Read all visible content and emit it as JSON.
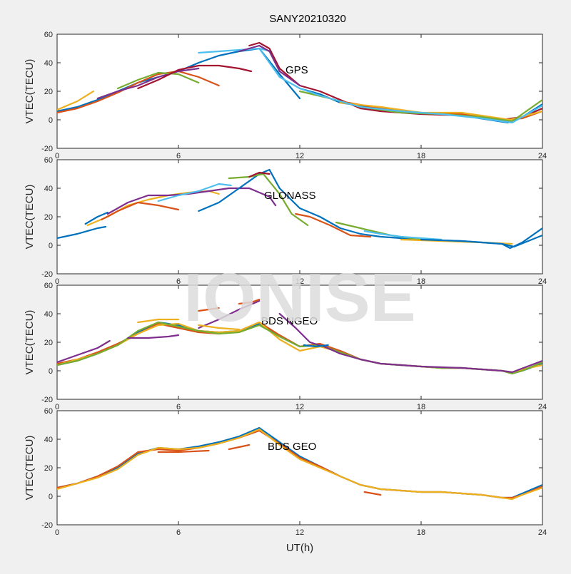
{
  "title": "SANY20210320",
  "watermark": "IONISE",
  "colors": [
    "#0072bd",
    "#d95319",
    "#edb120",
    "#7e2f8e",
    "#77ac30",
    "#4dbeee",
    "#a2142f"
  ],
  "chart_data": [
    {
      "type": "line",
      "annotation": "GPS",
      "ylabel": "VTEC(TECU)",
      "xlabel": "",
      "xlim": [
        0,
        24
      ],
      "ylim": [
        -20,
        60
      ],
      "xticks": [
        0,
        6,
        12,
        18,
        24
      ],
      "yticks": [
        -20,
        0,
        20,
        40,
        60
      ],
      "series": [
        {
          "color": 0,
          "x": [
            0,
            1,
            2,
            3,
            4,
            5,
            6,
            7,
            8,
            9,
            10,
            11,
            12
          ],
          "y": [
            6,
            9,
            14,
            20,
            26,
            30,
            34,
            40,
            45,
            48,
            50,
            32,
            15
          ]
        },
        {
          "color": 1,
          "x": [
            0,
            1,
            2,
            3,
            4,
            5,
            6,
            7,
            8
          ],
          "y": [
            5,
            8,
            13,
            19,
            26,
            32,
            34,
            30,
            24
          ]
        },
        {
          "color": 2,
          "x": [
            0,
            1,
            1.8
          ],
          "y": [
            7,
            13,
            20
          ]
        },
        {
          "color": 3,
          "x": [
            2,
            3,
            4,
            5,
            6,
            7
          ],
          "y": [
            15,
            20,
            24,
            30,
            34,
            36
          ]
        },
        {
          "color": 4,
          "x": [
            3,
            4,
            5,
            6,
            7
          ],
          "y": [
            22,
            28,
            33,
            32,
            26
          ]
        },
        {
          "color": 5,
          "x": [
            7,
            8,
            9,
            10,
            10.6
          ],
          "y": [
            47,
            48,
            49,
            50,
            48
          ]
        },
        {
          "color": 6,
          "x": [
            4,
            5,
            6,
            7,
            8,
            9,
            9.6
          ],
          "y": [
            22,
            28,
            35,
            38,
            38,
            36,
            34
          ]
        },
        {
          "color": 6,
          "x": [
            9.5,
            10,
            10.5,
            11,
            12,
            13,
            14,
            15,
            16,
            18,
            20,
            22,
            23,
            24
          ],
          "y": [
            52,
            54,
            50,
            36,
            24,
            20,
            14,
            8,
            6,
            4,
            3,
            0,
            2,
            8
          ]
        },
        {
          "color": 0,
          "x": [
            12,
            13,
            14,
            16,
            18,
            20,
            22.3,
            23,
            24
          ],
          "y": [
            22,
            18,
            12,
            8,
            5,
            3,
            -2,
            2,
            11
          ]
        },
        {
          "color": 1,
          "x": [
            12.5,
            14,
            16,
            18,
            20,
            22,
            23,
            24
          ],
          "y": [
            19,
            13,
            8,
            5,
            4,
            0,
            1,
            6
          ]
        },
        {
          "color": 2,
          "x": [
            14,
            16,
            18,
            20,
            22.4,
            24
          ],
          "y": [
            12,
            9,
            5,
            5,
            0,
            6
          ]
        },
        {
          "color": 4,
          "x": [
            12,
            13.5,
            15,
            17,
            19,
            21,
            22.5,
            24
          ],
          "y": [
            20,
            15,
            9,
            5,
            4,
            2,
            -1,
            14
          ]
        },
        {
          "color": 5,
          "x": [
            10,
            11,
            12,
            13,
            15,
            17,
            19,
            21,
            22.5,
            24
          ],
          "y": [
            50,
            30,
            22,
            17,
            9,
            6,
            4,
            1,
            -2,
            10
          ]
        },
        {
          "color": 3,
          "x": [
            9,
            10,
            10.5,
            11,
            12
          ],
          "y": [
            48,
            52,
            48,
            34,
            24
          ]
        }
      ]
    },
    {
      "type": "line",
      "annotation": "GLONASS",
      "ylabel": "VTEC(TECU)",
      "xlabel": "",
      "xlim": [
        0,
        24
      ],
      "ylim": [
        -20,
        60
      ],
      "xticks": [
        0,
        6,
        12,
        18,
        24
      ],
      "yticks": [
        -20,
        0,
        20,
        40,
        60
      ],
      "series": [
        {
          "color": 0,
          "x": [
            0,
            1,
            2,
            2.4
          ],
          "y": [
            5,
            8,
            12,
            13
          ]
        },
        {
          "color": 0,
          "x": [
            1.4,
            2,
            2.5
          ],
          "y": [
            15,
            20,
            23
          ]
        },
        {
          "color": 2,
          "x": [
            1.5,
            2.5,
            3.5,
            4.5,
            5.5,
            6.5,
            7.5,
            8
          ],
          "y": [
            14,
            20,
            28,
            32,
            35,
            37,
            38,
            36
          ]
        },
        {
          "color": 3,
          "x": [
            2.5,
            3.5,
            4.5,
            5.5,
            6.5,
            7.5,
            8.5,
            9.5,
            10.5,
            10.8
          ],
          "y": [
            22,
            30,
            35,
            35,
            36,
            38,
            40,
            40,
            34,
            28
          ]
        },
        {
          "color": 1,
          "x": [
            2.2,
            3,
            4,
            5,
            6
          ],
          "y": [
            18,
            24,
            30,
            28,
            25
          ]
        },
        {
          "color": 5,
          "x": [
            5,
            6,
            7,
            8,
            8.6
          ],
          "y": [
            31,
            35,
            38,
            43,
            42
          ]
        },
        {
          "color": 0,
          "x": [
            7,
            8,
            9,
            10,
            10.5,
            11,
            12,
            13,
            14,
            15,
            16,
            18,
            20,
            22,
            22.4,
            23,
            24
          ],
          "y": [
            24,
            30,
            40,
            50,
            53,
            40,
            26,
            20,
            12,
            8,
            6,
            4,
            3,
            1,
            -2,
            2,
            12
          ]
        },
        {
          "color": 4,
          "x": [
            8.5,
            9.5,
            10.2,
            11,
            11.6,
            12.4
          ],
          "y": [
            47,
            48,
            50,
            36,
            22,
            14
          ]
        },
        {
          "color": 6,
          "x": [
            9.5,
            10,
            10.5
          ],
          "y": [
            48,
            51,
            50
          ]
        },
        {
          "color": 1,
          "x": [
            11.8,
            12.5,
            13.5,
            14.5,
            15.5
          ],
          "y": [
            22,
            20,
            14,
            7,
            6
          ]
        },
        {
          "color": 4,
          "x": [
            13.8,
            15,
            16.5,
            18,
            19.5
          ],
          "y": [
            16,
            12,
            7,
            4,
            3
          ]
        },
        {
          "color": 5,
          "x": [
            15.2,
            16,
            17,
            18,
            19
          ],
          "y": [
            10,
            8,
            6,
            5,
            4
          ]
        },
        {
          "color": 2,
          "x": [
            17,
            19,
            21,
            22.5
          ],
          "y": [
            4,
            3,
            2,
            1
          ]
        },
        {
          "color": 0,
          "x": [
            18,
            20,
            22,
            22.6,
            24
          ],
          "y": [
            4,
            3,
            1,
            -1,
            7
          ]
        }
      ]
    },
    {
      "type": "line",
      "annotation": "BDS NGEO",
      "ylabel": "VTEC(TECU)",
      "xlabel": "",
      "xlim": [
        0,
        24
      ],
      "ylim": [
        -20,
        60
      ],
      "xticks": [
        0,
        6,
        12,
        18,
        24
      ],
      "yticks": [
        -20,
        0,
        20,
        40,
        60
      ],
      "series": [
        {
          "color": 0,
          "x": [
            0,
            1,
            2,
            3,
            4,
            5,
            6,
            7,
            8,
            9,
            10,
            11,
            12,
            13,
            14,
            15,
            16,
            17,
            18,
            19,
            20,
            21,
            22,
            22.5,
            23,
            24
          ],
          "y": [
            4,
            7,
            12,
            18,
            27,
            34,
            32,
            28,
            27,
            28,
            33,
            24,
            17,
            18,
            14,
            8,
            5,
            4,
            3,
            2,
            2,
            1,
            0,
            -2,
            0,
            5
          ]
        },
        {
          "color": 1,
          "x": [
            0,
            1,
            2,
            3,
            4,
            5,
            6,
            7,
            8,
            9,
            10,
            11,
            12,
            13,
            14,
            15,
            16,
            17,
            18,
            19,
            20,
            21,
            22,
            22.5,
            23,
            24
          ],
          "y": [
            5,
            8,
            13,
            19,
            26,
            33,
            30,
            27,
            26,
            28,
            34,
            25,
            17,
            19,
            14,
            8,
            5,
            4,
            3,
            2,
            2,
            1,
            0,
            -1,
            0,
            6
          ]
        },
        {
          "color": 2,
          "x": [
            0,
            1,
            2,
            3,
            4,
            5,
            6,
            7,
            8,
            9,
            10,
            11,
            12,
            13,
            14,
            15,
            16,
            17,
            18,
            19,
            20,
            21,
            22,
            22.5,
            23,
            24
          ],
          "y": [
            4,
            8,
            12,
            18,
            26,
            32,
            33,
            28,
            27,
            28,
            34,
            22,
            14,
            17,
            13,
            8,
            5,
            4,
            3,
            2,
            2,
            1,
            0,
            -2,
            1,
            4
          ]
        },
        {
          "color": 4,
          "x": [
            0,
            1,
            2,
            3,
            4,
            5,
            6,
            7,
            8,
            9,
            10,
            11,
            12,
            13,
            14,
            15,
            16,
            17,
            18,
            19,
            20,
            21,
            22,
            22.5,
            23,
            24
          ],
          "y": [
            4,
            7,
            12,
            18,
            28,
            34,
            31,
            28,
            26,
            27,
            32,
            24,
            17,
            18,
            13,
            8,
            5,
            4,
            3,
            2,
            2,
            1,
            0,
            -2,
            0,
            6
          ]
        },
        {
          "color": 3,
          "x": [
            0,
            1,
            2,
            2.6
          ],
          "y": [
            6,
            11,
            16,
            21
          ]
        },
        {
          "color": 3,
          "x": [
            3.5,
            4.5,
            5.5,
            6
          ],
          "y": [
            23,
            23,
            24,
            25
          ]
        },
        {
          "color": 3,
          "x": [
            7,
            8,
            9,
            10
          ],
          "y": [
            30,
            36,
            43,
            49
          ]
        },
        {
          "color": 3,
          "x": [
            11,
            11.8,
            12.5,
            13.2,
            14,
            15,
            16,
            18,
            20,
            22,
            22.5,
            24
          ],
          "y": [
            40,
            30,
            20,
            17,
            12,
            8,
            5,
            3,
            2,
            0,
            -1,
            7
          ]
        },
        {
          "color": 1,
          "x": [
            7,
            8
          ],
          "y": [
            42,
            44
          ]
        },
        {
          "color": 1,
          "x": [
            9,
            9.6,
            10
          ],
          "y": [
            47,
            48,
            50
          ]
        },
        {
          "color": 2,
          "x": [
            4,
            5,
            6
          ],
          "y": [
            34,
            36,
            36
          ]
        },
        {
          "color": 2,
          "x": [
            7,
            8,
            9
          ],
          "y": [
            32,
            30,
            29
          ]
        },
        {
          "color": 0,
          "x": [
            12.2,
            12.8,
            13.4
          ],
          "y": [
            18,
            17,
            18
          ]
        }
      ]
    },
    {
      "type": "line",
      "annotation": "BDS GEO",
      "ylabel": "VTEC(TECU)",
      "xlabel": "UT(h)",
      "xlim": [
        0,
        24
      ],
      "ylim": [
        -20,
        60
      ],
      "xticks": [
        0,
        6,
        12,
        18,
        24
      ],
      "yticks": [
        -20,
        0,
        20,
        40,
        60
      ],
      "series": [
        {
          "color": 0,
          "x": [
            0,
            1,
            2,
            3,
            4,
            5,
            6,
            7,
            8,
            9,
            10,
            11,
            12,
            13,
            14,
            15,
            16,
            17,
            18,
            19,
            20,
            21,
            22,
            22.5,
            23,
            24
          ],
          "y": [
            6,
            9,
            14,
            20,
            30,
            34,
            33,
            35,
            38,
            42,
            48,
            38,
            28,
            21,
            14,
            8,
            5,
            4,
            3,
            3,
            2,
            1,
            -1,
            -1,
            2,
            8
          ]
        },
        {
          "color": 1,
          "x": [
            0,
            1,
            2,
            3,
            4,
            5,
            6,
            7,
            8,
            9,
            10,
            11,
            12,
            13,
            14,
            15,
            16,
            17,
            18,
            19,
            20,
            21,
            22,
            22.5,
            23,
            24
          ],
          "y": [
            6,
            9,
            14,
            21,
            31,
            33,
            32,
            34,
            37,
            41,
            46,
            37,
            27,
            21,
            14,
            8,
            5,
            4,
            3,
            3,
            2,
            1,
            -1,
            -1,
            1,
            7
          ]
        },
        {
          "color": 2,
          "x": [
            0,
            1,
            2,
            3,
            4,
            5,
            6,
            7,
            8,
            9,
            10,
            11,
            12,
            13,
            14,
            15,
            16,
            17,
            18,
            19,
            20,
            21,
            22,
            22.5,
            23,
            24
          ],
          "y": [
            5,
            9,
            13,
            19,
            29,
            34,
            33,
            34,
            37,
            41,
            47,
            36,
            26,
            20,
            14,
            8,
            5,
            4,
            3,
            3,
            2,
            1,
            -1,
            -2,
            1,
            6
          ]
        },
        {
          "color": 1,
          "x": [
            5,
            6,
            7.5
          ],
          "y": [
            31,
            31,
            32
          ]
        },
        {
          "color": 1,
          "x": [
            8.5,
            9.5
          ],
          "y": [
            33,
            36
          ]
        },
        {
          "color": 1,
          "x": [
            15.2,
            16
          ],
          "y": [
            3,
            1
          ]
        }
      ]
    }
  ]
}
